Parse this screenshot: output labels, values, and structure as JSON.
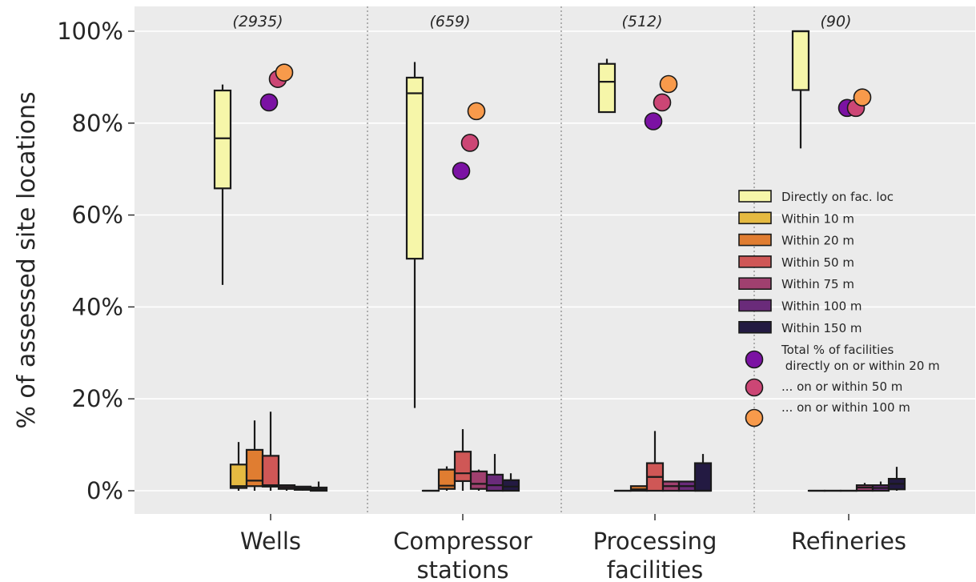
{
  "chart_data": {
    "type": "box",
    "title": "",
    "xlabel": "",
    "ylabel": "% of assessed site locations",
    "ylim": [
      -5,
      105
    ],
    "yticks": [
      0,
      20,
      40,
      60,
      80,
      100
    ],
    "ytick_labels": [
      "0%",
      "20%",
      "40%",
      "60%",
      "80%",
      "100%"
    ],
    "grid": true,
    "legend_position": "right",
    "categories": [
      {
        "label_lines": [
          "Wells"
        ],
        "count_label": "(2935)"
      },
      {
        "label_lines": [
          "Compressor",
          "stations"
        ],
        "count_label": "(659)"
      },
      {
        "label_lines": [
          "Processing",
          "facilities"
        ],
        "count_label": "(512)"
      },
      {
        "label_lines": [
          "Refineries"
        ],
        "count_label": "(90)"
      }
    ],
    "box_series": [
      {
        "name": "Directly on fac. loc",
        "color": "#f6f6a9",
        "boxes": [
          {
            "whislo": 44.8,
            "q1": 65.8,
            "med": 76.7,
            "q3": 87.1,
            "whishi": 88.4
          },
          {
            "whislo": 18.0,
            "q1": 50.5,
            "med": 86.5,
            "q3": 89.9,
            "whishi": 93.3
          },
          {
            "whislo": 82.4,
            "q1": 82.4,
            "med": 89.0,
            "q3": 92.9,
            "whishi": 94.0
          },
          {
            "whislo": 74.5,
            "q1": 87.2,
            "med": 100.0,
            "q3": 100.0,
            "whishi": 100.0
          }
        ]
      },
      {
        "name": "Within 10 m",
        "color": "#e5ba41",
        "boxes": [
          {
            "whislo": 0.0,
            "q1": 0.6,
            "med": 1.0,
            "q3": 5.7,
            "whishi": 10.6
          },
          {
            "whislo": 0.0,
            "q1": 0.0,
            "med": 0.0,
            "q3": 0.0,
            "whishi": 0.0
          },
          {
            "whislo": 0.0,
            "q1": 0.0,
            "med": 0.0,
            "q3": 0.0,
            "whishi": 0.0
          },
          {
            "whislo": 0.0,
            "q1": 0.0,
            "med": 0.0,
            "q3": 0.0,
            "whishi": 0.0
          }
        ]
      },
      {
        "name": "Within 20 m",
        "color": "#e07d31",
        "boxes": [
          {
            "whislo": 0.0,
            "q1": 1.0,
            "med": 2.2,
            "q3": 8.9,
            "whishi": 15.3
          },
          {
            "whislo": 0.0,
            "q1": 0.4,
            "med": 1.1,
            "q3": 4.6,
            "whishi": 5.3
          },
          {
            "whislo": 0.0,
            "q1": 0.0,
            "med": 0.3,
            "q3": 1.0,
            "whishi": 1.0
          },
          {
            "whislo": 0.0,
            "q1": 0.0,
            "med": 0.0,
            "q3": 0.0,
            "whishi": 0.0
          }
        ]
      },
      {
        "name": "Within 50 m",
        "color": "#cf5756",
        "boxes": [
          {
            "whislo": 0.0,
            "q1": 0.9,
            "med": 1.2,
            "q3": 7.6,
            "whishi": 17.2
          },
          {
            "whislo": 0.0,
            "q1": 2.1,
            "med": 3.8,
            "q3": 8.5,
            "whishi": 13.4
          },
          {
            "whislo": 0.0,
            "q1": 0.0,
            "med": 3.0,
            "q3": 6.0,
            "whishi": 13.0
          },
          {
            "whislo": 0.0,
            "q1": 0.0,
            "med": 0.0,
            "q3": 0.0,
            "whishi": 0.0
          }
        ]
      },
      {
        "name": "Within 75 m",
        "color": "#a0406f",
        "boxes": [
          {
            "whislo": 0.0,
            "q1": 0.4,
            "med": 0.8,
            "q3": 1.2,
            "whishi": 1.2
          },
          {
            "whislo": 0.0,
            "q1": 0.4,
            "med": 1.5,
            "q3": 4.2,
            "whishi": 4.6
          },
          {
            "whislo": 0.0,
            "q1": 0.0,
            "med": 1.0,
            "q3": 2.0,
            "whishi": 2.0
          },
          {
            "whislo": 0.0,
            "q1": 0.0,
            "med": 0.7,
            "q3": 1.2,
            "whishi": 1.7
          }
        ]
      },
      {
        "name": "Within 100 m",
        "color": "#6a2b7a",
        "boxes": [
          {
            "whislo": 0.0,
            "q1": 0.2,
            "med": 0.5,
            "q3": 0.9,
            "whishi": 0.9
          },
          {
            "whislo": 0.0,
            "q1": 0.0,
            "med": 1.2,
            "q3": 3.5,
            "whishi": 8.0
          },
          {
            "whislo": 0.0,
            "q1": 0.0,
            "med": 1.0,
            "q3": 2.0,
            "whishi": 2.0
          },
          {
            "whislo": 0.0,
            "q1": 0.0,
            "med": 0.6,
            "q3": 1.2,
            "whishi": 2.0
          }
        ]
      },
      {
        "name": "Within 150 m",
        "color": "#231a42",
        "boxes": [
          {
            "whislo": 0.0,
            "q1": 0.0,
            "med": 0.3,
            "q3": 0.7,
            "whishi": 2.0
          },
          {
            "whislo": 0.0,
            "q1": 0.0,
            "med": 0.9,
            "q3": 2.3,
            "whishi": 3.8
          },
          {
            "whislo": 0.0,
            "q1": 0.0,
            "med": 0.0,
            "q3": 6.0,
            "whishi": 8.0
          },
          {
            "whislo": 0.0,
            "q1": 0.3,
            "med": 1.5,
            "q3": 2.6,
            "whishi": 5.2
          }
        ]
      }
    ],
    "point_series": [
      {
        "name": "Total % of facilities\n directly on or within 20 m",
        "color": "#7b12a3",
        "values": [
          84.5,
          69.6,
          80.4,
          83.3
        ]
      },
      {
        "name": "... on or within 50 m",
        "color": "#cc4675",
        "values": [
          89.6,
          75.7,
          84.5,
          83.3
        ]
      },
      {
        "name": "... on or within 100 m",
        "color": "#f89a4b",
        "values": [
          91.0,
          82.6,
          88.5,
          85.6
        ]
      }
    ]
  }
}
